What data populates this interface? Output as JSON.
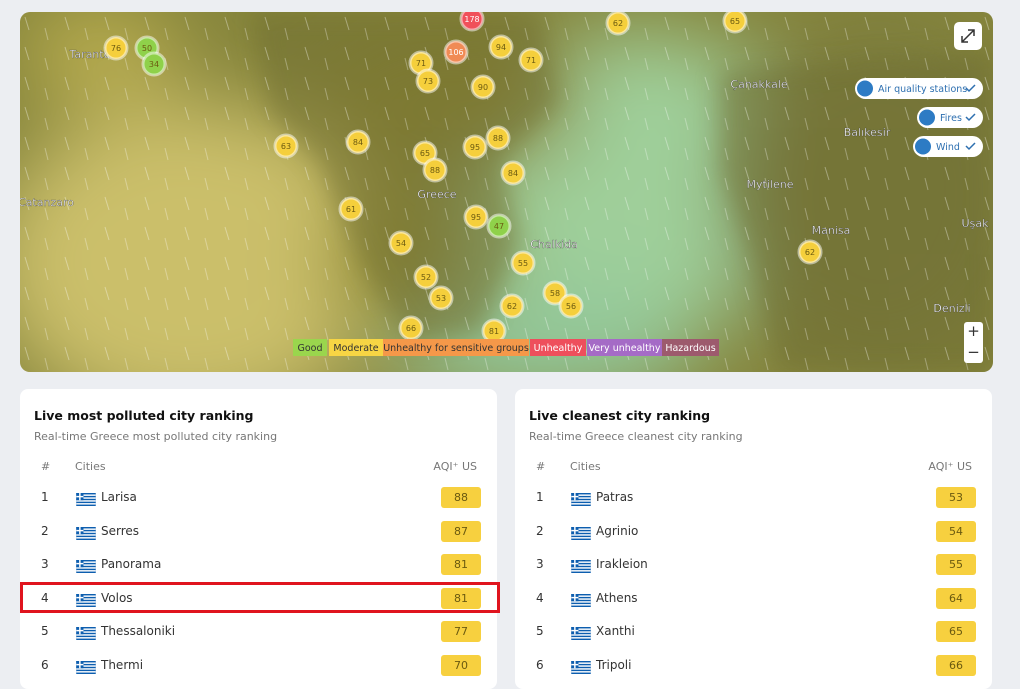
{
  "map": {
    "places": [
      "Taranto",
      "Catanzaro",
      "Greece",
      "Chalkida",
      "Çanakkale",
      "Balıkesir",
      "Mytilene",
      "Manisa",
      "Uşak",
      "Denizli"
    ],
    "markers": [
      178,
      62,
      65,
      76,
      50,
      34,
      106,
      94,
      71,
      71,
      73,
      90,
      63,
      84,
      88,
      95,
      65,
      88,
      84,
      61,
      95,
      47,
      54,
      52,
      55,
      53,
      62,
      58,
      56,
      66,
      81,
      62
    ],
    "layers": [
      "Air quality stations",
      "Fires",
      "Wind"
    ],
    "legend": [
      "Good",
      "Moderate",
      "Unhealthy for sensitive groups",
      "Unhealthy",
      "Very unhealthy",
      "Hazardous"
    ]
  },
  "polluted": {
    "title": "Live most polluted city ranking",
    "subtitle": "Real-time Greece most polluted city ranking",
    "headers": [
      "#",
      "Cities",
      "AQI⁺ US"
    ],
    "rows": [
      {
        "rank": 1,
        "city": "Larisa",
        "aqi": 88
      },
      {
        "rank": 2,
        "city": "Serres",
        "aqi": 87
      },
      {
        "rank": 3,
        "city": "Panorama",
        "aqi": 81
      },
      {
        "rank": 4,
        "city": "Volos",
        "aqi": 81
      },
      {
        "rank": 5,
        "city": "Thessaloniki",
        "aqi": 77
      },
      {
        "rank": 6,
        "city": "Thermi",
        "aqi": 70
      }
    ]
  },
  "cleanest": {
    "title": "Live cleanest city ranking",
    "subtitle": "Real-time Greece cleanest city ranking",
    "headers": [
      "#",
      "Cities",
      "AQI⁺ US"
    ],
    "rows": [
      {
        "rank": 1,
        "city": "Patras",
        "aqi": 53
      },
      {
        "rank": 2,
        "city": "Agrinio",
        "aqi": 54
      },
      {
        "rank": 3,
        "city": "Irakleion",
        "aqi": 55
      },
      {
        "rank": 4,
        "city": "Athens",
        "aqi": 64
      },
      {
        "rank": 5,
        "city": "Xanthi",
        "aqi": 65
      },
      {
        "rank": 6,
        "city": "Tripoli",
        "aqi": 66
      }
    ]
  }
}
